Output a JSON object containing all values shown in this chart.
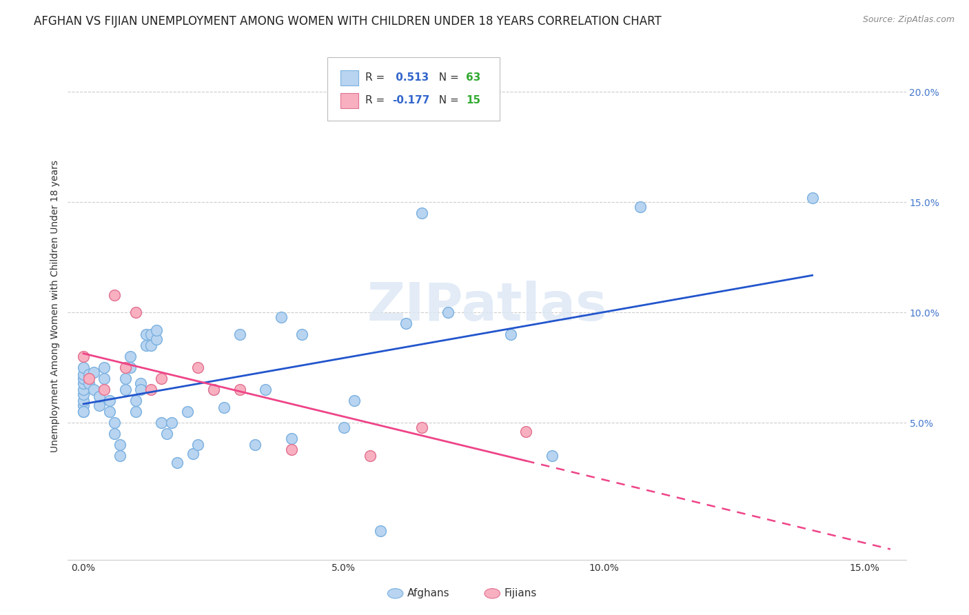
{
  "title": "AFGHAN VS FIJIAN UNEMPLOYMENT AMONG WOMEN WITH CHILDREN UNDER 18 YEARS CORRELATION CHART",
  "source": "Source: ZipAtlas.com",
  "ylabel": "Unemployment Among Women with Children Under 18 years",
  "xlim": [
    -0.003,
    0.158
  ],
  "ylim": [
    -0.012,
    0.218
  ],
  "watermark": "ZIPatlas",
  "afghan_color": "#b8d4f0",
  "afghan_edge_color": "#7ab0e0",
  "fijian_color": "#f8b0c0",
  "fijian_edge_color": "#e07090",
  "afghan_R": 0.513,
  "afghan_N": 63,
  "fijian_R": -0.177,
  "fijian_N": 15,
  "afghan_line_color": "#2255cc",
  "fijian_line_color": "#ee4488",
  "afghan_points_x": [
    0.0,
    0.0,
    0.0,
    0.0,
    0.0,
    0.0,
    0.0,
    0.0,
    0.0,
    0.0,
    0.001,
    0.001,
    0.002,
    0.002,
    0.003,
    0.003,
    0.004,
    0.004,
    0.005,
    0.005,
    0.006,
    0.006,
    0.007,
    0.007,
    0.008,
    0.008,
    0.009,
    0.009,
    0.01,
    0.01,
    0.011,
    0.011,
    0.012,
    0.012,
    0.013,
    0.013,
    0.014,
    0.014,
    0.015,
    0.016,
    0.017,
    0.018,
    0.02,
    0.021,
    0.022,
    0.025,
    0.027,
    0.03,
    0.033,
    0.035,
    0.038,
    0.04,
    0.042,
    0.05,
    0.052,
    0.057,
    0.062,
    0.065,
    0.07,
    0.082,
    0.09,
    0.107,
    0.14
  ],
  "afghan_points_y": [
    0.055,
    0.058,
    0.06,
    0.063,
    0.065,
    0.068,
    0.07,
    0.072,
    0.075,
    0.055,
    0.068,
    0.072,
    0.065,
    0.073,
    0.058,
    0.062,
    0.07,
    0.075,
    0.055,
    0.06,
    0.05,
    0.045,
    0.04,
    0.035,
    0.065,
    0.07,
    0.075,
    0.08,
    0.055,
    0.06,
    0.068,
    0.065,
    0.085,
    0.09,
    0.085,
    0.09,
    0.088,
    0.092,
    0.05,
    0.045,
    0.05,
    0.032,
    0.055,
    0.036,
    0.04,
    0.065,
    0.057,
    0.09,
    0.04,
    0.065,
    0.098,
    0.043,
    0.09,
    0.048,
    0.06,
    0.001,
    0.095,
    0.145,
    0.1,
    0.09,
    0.035,
    0.148,
    0.152
  ],
  "fijian_points_x": [
    0.0,
    0.001,
    0.004,
    0.006,
    0.008,
    0.01,
    0.013,
    0.015,
    0.022,
    0.025,
    0.03,
    0.04,
    0.055,
    0.065,
    0.085
  ],
  "fijian_points_y": [
    0.08,
    0.07,
    0.065,
    0.108,
    0.075,
    0.1,
    0.065,
    0.07,
    0.075,
    0.065,
    0.065,
    0.038,
    0.035,
    0.048,
    0.046
  ],
  "grid_color": "#cccccc",
  "background_color": "#ffffff",
  "title_fontsize": 12,
  "axis_label_fontsize": 10,
  "tick_fontsize": 10
}
